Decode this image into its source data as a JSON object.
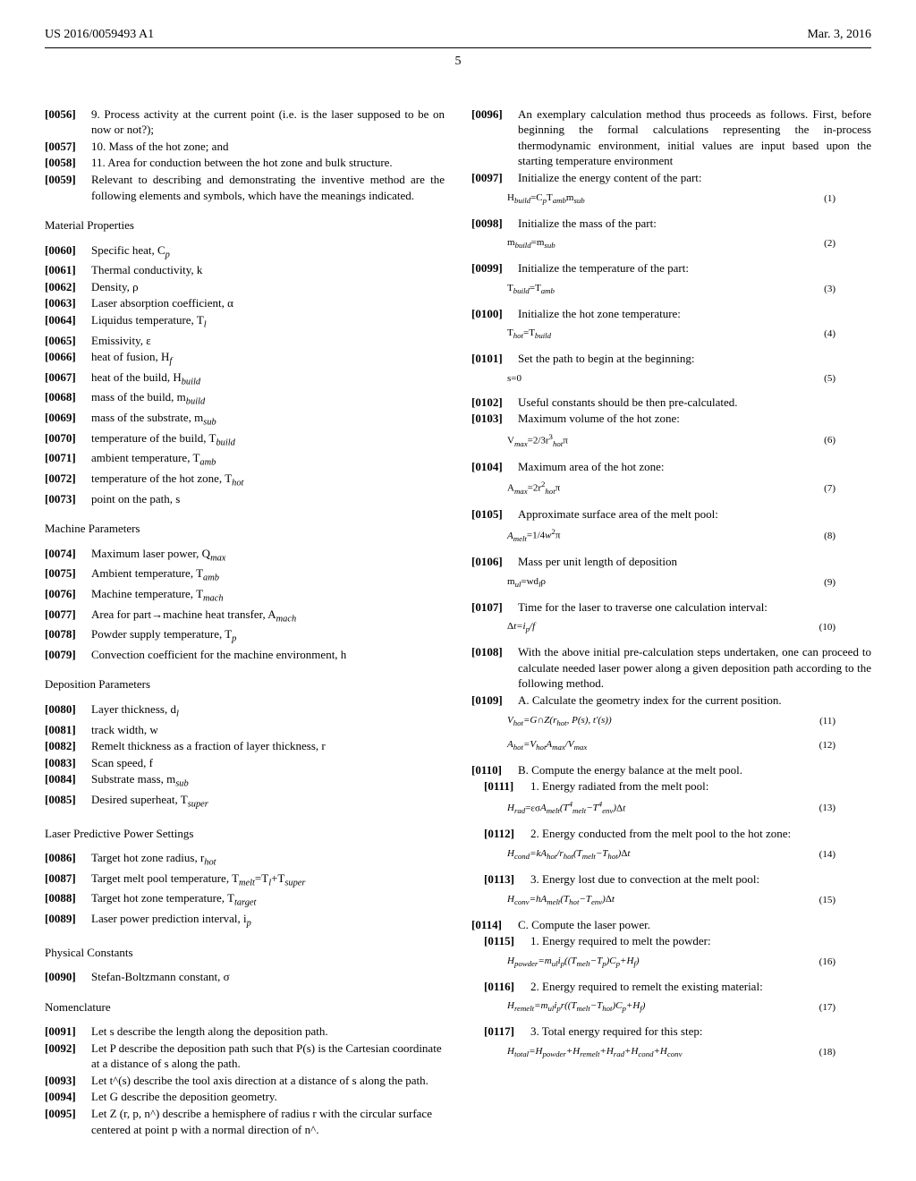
{
  "header": {
    "pub_number": "US 2016/0059493 A1",
    "date": "Mar. 3, 2016",
    "page": "5"
  },
  "left_col": {
    "paras_top": [
      {
        "num": "[0056]",
        "text": "9. Process activity at the current point (i.e. is the laser supposed to be on now or not?);",
        "no_indent": true
      },
      {
        "num": "[0057]",
        "text": "10. Mass of the hot zone; and"
      },
      {
        "num": "[0058]",
        "text": "11. Area for conduction between the hot zone and bulk structure.",
        "no_indent": true
      },
      {
        "num": "[0059]",
        "text": "Relevant to describing and demonstrating the inventive method are the following elements and symbols, which have the meanings indicated.",
        "no_indent": true
      }
    ],
    "sections": [
      {
        "heading": "Material Properties",
        "items": [
          {
            "num": "[0060]",
            "html": "Specific heat, C<sub class=\"sub\">p</sub>"
          },
          {
            "num": "[0061]",
            "html": "Thermal conductivity, k"
          },
          {
            "num": "[0062]",
            "html": "Density, ρ"
          },
          {
            "num": "[0063]",
            "html": "Laser absorption coefficient, α"
          },
          {
            "num": "[0064]",
            "html": "Liquidus temperature, T<sub class=\"sub\">l</sub>"
          },
          {
            "num": "[0065]",
            "html": "Emissivity, ε"
          },
          {
            "num": "[0066]",
            "html": "heat of fusion, H<sub class=\"sub\">f</sub>"
          },
          {
            "num": "[0067]",
            "html": "heat of the build, H<sub class=\"sub\">build</sub>"
          },
          {
            "num": "[0068]",
            "html": "mass of the build, m<sub class=\"sub\">build</sub>"
          },
          {
            "num": "[0069]",
            "html": "mass of the substrate, m<sub class=\"sub\">sub</sub>"
          },
          {
            "num": "[0070]",
            "html": "temperature of the build, T<sub class=\"sub\">build</sub>"
          },
          {
            "num": "[0071]",
            "html": "ambient temperature, T<sub class=\"sub\">amb</sub>"
          },
          {
            "num": "[0072]",
            "html": "temperature of the hot zone, T<sub class=\"sub\">hot</sub>"
          },
          {
            "num": "[0073]",
            "html": "point on the path, s"
          }
        ]
      },
      {
        "heading": "Machine Parameters",
        "items": [
          {
            "num": "[0074]",
            "html": "Maximum laser power, Q<sub class=\"sub\">max</sub>"
          },
          {
            "num": "[0075]",
            "html": "Ambient temperature, T<sub class=\"sub\">amb</sub>"
          },
          {
            "num": "[0076]",
            "html": "Machine temperature, T<sub class=\"sub\">mach</sub>"
          },
          {
            "num": "[0077]",
            "html": "Area for part→machine heat transfer, A<sub class=\"sub\">mach</sub>"
          },
          {
            "num": "[0078]",
            "html": "Powder supply temperature, T<sub class=\"sub\">p</sub>"
          },
          {
            "num": "[0079]",
            "html": "Convection coefficient for the machine environment, h",
            "no_indent": true
          }
        ]
      },
      {
        "heading": "Deposition Parameters",
        "items": [
          {
            "num": "[0080]",
            "html": "Layer thickness, d<sub class=\"sub\">l</sub>"
          },
          {
            "num": "[0081]",
            "html": "track width, w"
          },
          {
            "num": "[0082]",
            "html": "Remelt thickness as a fraction of layer thickness, r"
          },
          {
            "num": "[0083]",
            "html": "Scan speed, f"
          },
          {
            "num": "[0084]",
            "html": "Substrate mass, m<sub class=\"sub\">sub</sub>"
          },
          {
            "num": "[0085]",
            "html": "Desired superheat, T<sub class=\"sub\">super</sub>"
          }
        ]
      },
      {
        "heading": "Laser Predictive Power Settings",
        "items": [
          {
            "num": "[0086]",
            "html": "Target hot zone radius, r<sub class=\"sub\">hot</sub>"
          },
          {
            "num": "[0087]",
            "html": "Target melt pool temperature, T<sub class=\"sub\">melt</sub>=T<sub class=\"sub\">l</sub>+T<sub class=\"sub\">super</sub>"
          },
          {
            "num": "[0088]",
            "html": "Target hot zone temperature, T<sub class=\"sub\">target</sub>"
          },
          {
            "num": "[0089]",
            "html": "Laser power prediction interval, i<sub class=\"sub\">p</sub>"
          }
        ]
      },
      {
        "heading": "Physical Constants",
        "items": [
          {
            "num": "[0090]",
            "html": "Stefan-Boltzmann constant, σ"
          }
        ]
      },
      {
        "heading": "Nomenclature",
        "items": [
          {
            "num": "[0091]",
            "html": "Let s describe the length along the deposition path."
          },
          {
            "num": "[0092]",
            "html": "Let P describe the deposition path such that P(s) is the Cartesian coordinate at a distance of s along the path.",
            "no_indent": true
          },
          {
            "num": "[0093]",
            "html": "Let t^(s) describe the tool axis direction at a distance of s along the path.",
            "no_indent": true
          },
          {
            "num": "[0094]",
            "html": "Let G describe the deposition geometry."
          },
          {
            "num": "[0095]",
            "html": "Let Z (r, p, n^) describe a hemisphere of radius r with the circular surface centered at point p with a normal direction of n^.",
            "no_indent": true
          }
        ]
      }
    ]
  },
  "right_col": {
    "intro": {
      "num": "[0096]",
      "text": "An exemplary calculation method thus proceeds as follows. First, before beginning the formal calculations representing the in-process thermodynamic environment, initial values are input based upon the starting temperature environment"
    },
    "steps": [
      {
        "num": "[0097]",
        "text": "Initialize the energy content of the part:",
        "eq": "H<sub class=\"sub\">build</sub>=C<sub class=\"sub\">p</sub>T<sub class=\"sub\">amb</sub>m<sub class=\"sub\">sub</sub>",
        "eqnum": "(1)"
      },
      {
        "num": "[0098]",
        "text": "Initialize the mass of the part:",
        "eq": "m<sub class=\"sub\">build</sub>=m<sub class=\"sub\">sub</sub>",
        "eqnum": "(2)"
      },
      {
        "num": "[0099]",
        "text": "Initialize the temperature of the part:",
        "eq": "T<sub class=\"sub\">build</sub>=T<sub class=\"sub\">amb</sub>",
        "eqnum": "(3)"
      },
      {
        "num": "[0100]",
        "text": "Initialize the hot zone temperature:",
        "eq": "T<sub class=\"sub\">hot</sub>=T<sub class=\"sub\">build</sub>",
        "eqnum": "(4)"
      },
      {
        "num": "[0101]",
        "text": "Set the path to begin at the beginning:",
        "eq": "s=0",
        "eqnum": "(5)"
      },
      {
        "num": "[0102]",
        "text": "Useful constants should be then pre-calculated."
      },
      {
        "num": "[0103]",
        "text": "Maximum volume of the hot zone:",
        "eq": "V<sub class=\"sub\">max</sub>=2/3r<span class=\"sup\">3</span><sub class=\"sub\">hot</sub>π",
        "eqnum": "(6)"
      },
      {
        "num": "[0104]",
        "text": "Maximum area of the hot zone:",
        "eq": "A<sub class=\"sub\">max</sub>=2r<span class=\"sup\">2</span><sub class=\"sub\">hot</sub>π",
        "eqnum": "(7)"
      },
      {
        "num": "[0105]",
        "text": "Approximate surface area of the melt pool:",
        "eq": "<span class=\"ital\">A<sub class=\"sub\">melt</sub></span>=1/4<span class=\"ital\">w</span><span class=\"sup\">2</span>π",
        "eqnum": "(8)"
      },
      {
        "num": "[0106]",
        "text": "Mass per unit length of deposition",
        "eq": "m<sub class=\"sub\">ul</sub>=wd<sub class=\"sub\">l</sub>ρ",
        "eqnum": "(9)"
      },
      {
        "num": "[0107]",
        "text": "Time for the laser to traverse one calculation interval:",
        "eq": "Δ<span class=\"ital\">t=i<sub class=\"sub\">p</sub>/f</span>",
        "eqnum": "(10)",
        "no_indent": true
      },
      {
        "num": "[0108]",
        "text": "With the above initial pre-calculation steps undertaken, one can proceed to calculate needed laser power along a given deposition path according to the following method.",
        "no_indent": true
      },
      {
        "num": "[0109]",
        "text": "A. Calculate the geometry index for the current position.",
        "eq": "<span class=\"ital\">V<sub class=\"sub\">hot</sub>=G∩Z(r<sub class=\"sub\">hot</sub>, P(s), t'(s))</span>",
        "eqnum": "(11)",
        "eq2": "<span class=\"ital\">A<sub class=\"sub\">hot</sub>=V<sub class=\"sub\">hot</sub>A<sub class=\"sub\">max</sub>/V<sub class=\"sub\">max</sub></span>",
        "eqnum2": "(12)",
        "no_indent": true
      },
      {
        "num": "[0110]",
        "text": "B. Compute the energy balance at the melt pool."
      },
      {
        "num": "[0111]",
        "text": "1. Energy radiated from the melt pool:",
        "eq": "<span class=\"ital\">H<sub class=\"sub\">rad</sub></span>=εσ<span class=\"ital\">A<sub class=\"sub\">melt</sub>(T<span class=\"sup\">4</span><sub class=\"sub\">melt</sub>−T<span class=\"sup\">4</span><sub class=\"sub\">env</sub>)</span>Δ<span class=\"ital\">t</span>",
        "eqnum": "(13)",
        "indent": true
      },
      {
        "num": "[0112]",
        "text": "2. Energy conducted from the melt pool to the hot zone:",
        "eq": "<span class=\"ital\">H<sub class=\"sub\">cond</sub>=kA<sub class=\"sub\">hot</sub>/r<sub class=\"sub\">hot</sub>(T<sub class=\"sub\">melt</sub>−T<sub class=\"sub\">hot</sub>)</span>Δ<span class=\"ital\">t</span>",
        "eqnum": "(14)",
        "indent": true,
        "no_indent": true
      },
      {
        "num": "[0113]",
        "text": "3. Energy lost due to convection at the melt pool:",
        "eq": "<span class=\"ital\">H<sub class=\"sub\">conv</sub>=hA<sub class=\"sub\">melt</sub>(T<sub class=\"sub\">hot</sub>−T<sub class=\"sub\">env</sub>)</span>Δ<span class=\"ital\">t</span>",
        "eqnum": "(15)",
        "indent": true
      },
      {
        "num": "[0114]",
        "text": "C. Compute the laser power."
      },
      {
        "num": "[0115]",
        "text": "1. Energy required to melt the powder:",
        "eq": "<span class=\"ital\">H<sub class=\"sub\">powder</sub>=m<sub class=\"sub\">ul</sub>i<sub class=\"sub\">p</sub>((T<sub class=\"sub\">melt</sub>−T<sub class=\"sub\">p</sub>)C<sub class=\"sub\">p</sub>+H<sub class=\"sub\">f</sub>)</span>",
        "eqnum": "(16)",
        "indent": true
      },
      {
        "num": "[0116]",
        "text": "2. Energy required to remelt the existing material:",
        "eq": "<span class=\"ital\">H<sub class=\"sub\">remelt</sub>=m<sub class=\"sub\">ul</sub>i<sub class=\"sub\">p</sub>r((T<sub class=\"sub\">melt</sub>−T<sub class=\"sub\">hot</sub>)C<sub class=\"sub\">p</sub>+H<sub class=\"sub\">f</sub>)</span>",
        "eqnum": "(17)",
        "indent": true
      },
      {
        "num": "[0117]",
        "text": "3. Total energy required for this step:",
        "eq": "<span class=\"ital\">H<sub class=\"sub\">total</sub>=H<sub class=\"sub\">powder</sub>+H<sub class=\"sub\">remelt</sub>+H<sub class=\"sub\">rad</sub>+H<sub class=\"sub\">cond</sub>+H<sub class=\"sub\">conv</sub></span>",
        "eqnum": "(18)",
        "indent": true
      }
    ]
  }
}
